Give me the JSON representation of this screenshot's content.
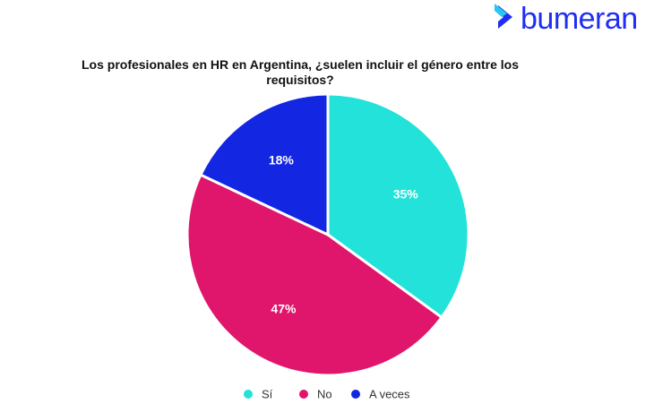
{
  "logo": "bumeran",
  "chart_data": {
    "type": "pie",
    "title": "Los profesionales en HR en Argentina, ¿suelen incluir el género entre los requisitos?",
    "categories": [
      "Sí",
      "No",
      "A veces"
    ],
    "values": [
      35,
      47,
      18
    ],
    "value_labels": [
      "35%",
      "47%",
      "18%"
    ],
    "colors": [
      "#22e2da",
      "#e0156c",
      "#1327e3"
    ],
    "legend": "bottom"
  }
}
